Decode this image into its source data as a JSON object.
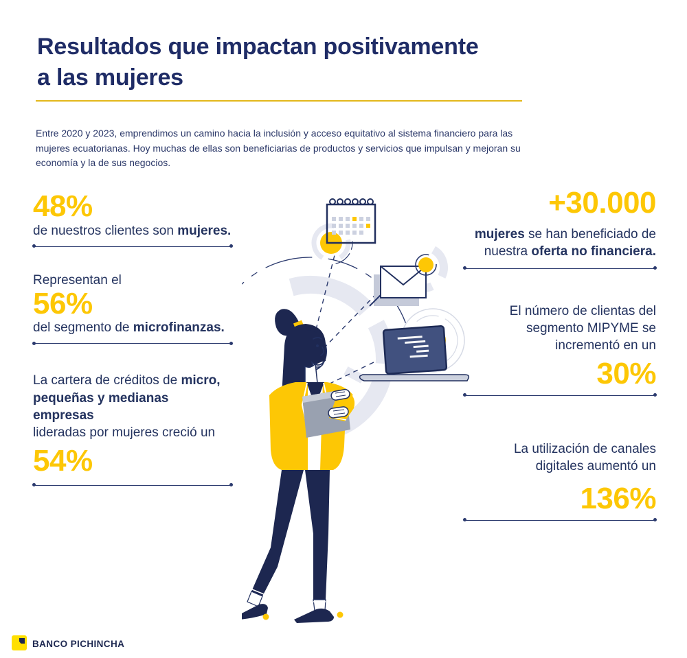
{
  "colors": {
    "navy": "#22305f",
    "navy_dark": "#1d2750",
    "yellow": "#fdc705",
    "logo_yellow": "#ffdf00",
    "line_gray": "#e6e8f1",
    "rule_gold": "#e3b71a"
  },
  "header": {
    "title_line1": "Resultados que impactan positivamente",
    "title_line2": "a las mujeres",
    "intro": "Entre 2020 y 2023, emprendimos un camino hacia la inclusión y acceso equitativo al sistema financiero para las mujeres ecuatorianas. Hoy muchas de ellas son beneficiarias de productos y servicios que impulsan y mejoran su economía y la de sus negocios."
  },
  "left_stats": [
    {
      "value": "48%",
      "desc": [
        {
          "t": "de nuestros clientes son "
        },
        {
          "t": "mujeres.",
          "b": 1
        }
      ]
    },
    {
      "pre": "Representan el",
      "value": "56%",
      "desc": [
        {
          "t": "del segmento de "
        },
        {
          "t": "microfinanzas.",
          "b": 1
        }
      ]
    },
    {
      "desc": [
        {
          "t": "La cartera de créditos de "
        },
        {
          "t": "micro,",
          "b": 1
        },
        {
          "br": 1
        },
        {
          "t": "pequeñas y medianas empresas",
          "b": 1
        },
        {
          "br": 1
        },
        {
          "t": "lideradas por mujeres creció un"
        }
      ],
      "value": "54%"
    }
  ],
  "right_stats": [
    {
      "value": "+30.000",
      "desc": [
        {
          "t": "mujeres",
          "b": 1
        },
        {
          "t": " se han beneficiado de"
        },
        {
          "br": 1
        },
        {
          "t": "nuestra "
        },
        {
          "t": "oferta no financiera.",
          "b": 1
        }
      ]
    },
    {
      "desc": [
        {
          "t": "El número de clientas del"
        },
        {
          "br": 1
        },
        {
          "t": "segmento MIPYME se"
        },
        {
          "br": 1
        },
        {
          "t": "incrementó en un"
        }
      ],
      "value": "30%"
    },
    {
      "desc": [
        {
          "t": "La utilización de canales"
        },
        {
          "br": 1
        },
        {
          "t": "digitales aumentó un"
        }
      ],
      "value": "136%"
    }
  ],
  "illustration": {
    "icons": [
      "calendar-icon",
      "envelope-icon",
      "laptop-icon"
    ],
    "figure": "woman-holding-tablet"
  },
  "footer": {
    "brand": "BANCO PICHINCHA"
  }
}
